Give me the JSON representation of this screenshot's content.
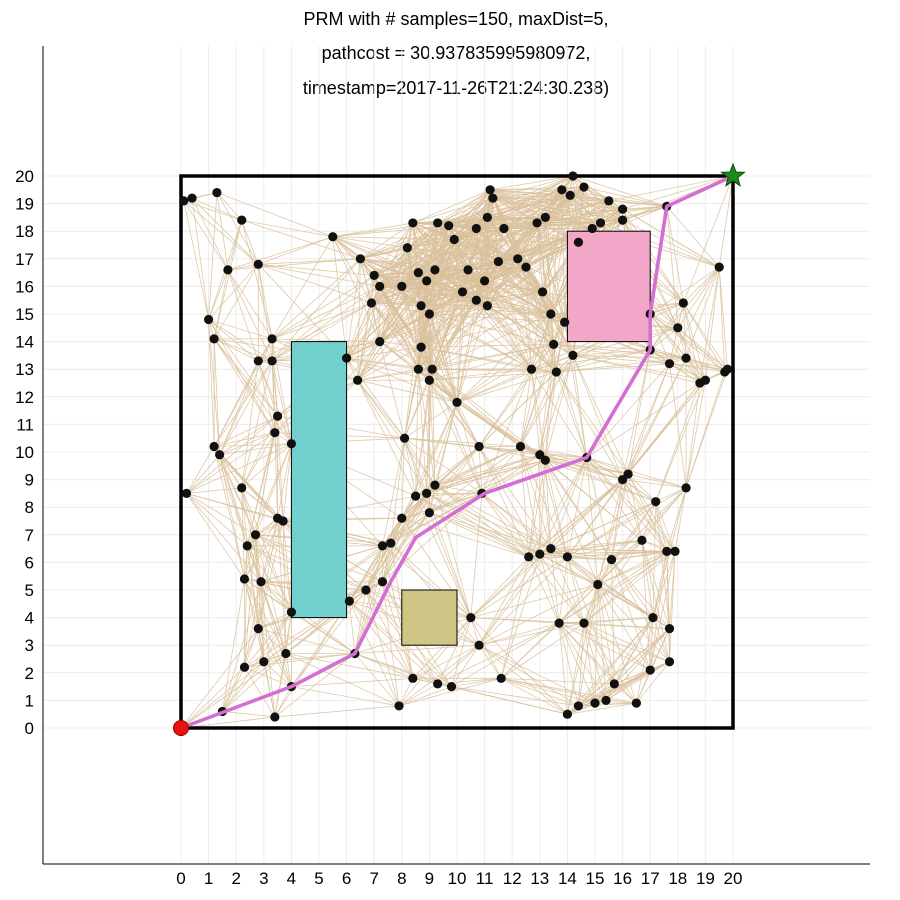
{
  "chart_data": {
    "type": "scatter",
    "title_lines": [
      "PRM with # samples=150, maxDist=5,",
      "pathcost = 30.937835995980972,",
      "timestamp=2017-11-26T21:24:30.238)"
    ],
    "xlabel": "",
    "ylabel": "",
    "xlim": [
      -5,
      25
    ],
    "ylim": [
      -5,
      25
    ],
    "xticks": [
      0,
      1,
      2,
      3,
      4,
      5,
      6,
      7,
      8,
      9,
      10,
      11,
      12,
      13,
      14,
      15,
      16,
      17,
      18,
      19,
      20
    ],
    "yticks": [
      0,
      1,
      2,
      3,
      4,
      5,
      6,
      7,
      8,
      9,
      10,
      11,
      12,
      13,
      14,
      15,
      16,
      17,
      18,
      19,
      20
    ],
    "grid": true,
    "legend": "none",
    "boundary": {
      "x": [
        0,
        20
      ],
      "y": [
        0,
        20
      ],
      "color": "#000000"
    },
    "obstacles": [
      {
        "x": 4,
        "y": 4,
        "w": 2,
        "h": 10,
        "color": "#71d0cd"
      },
      {
        "x": 8,
        "y": 3,
        "w": 2,
        "h": 2,
        "color": "#cfc584"
      },
      {
        "x": 14,
        "y": 14,
        "w": 3,
        "h": 4,
        "color": "#f2a6c8"
      }
    ],
    "start": {
      "x": 0,
      "y": 0,
      "color": "#e8120f"
    },
    "goal": {
      "x": 20,
      "y": 20,
      "color": "#1d8a1d"
    },
    "edge_color": "#d9bf9a",
    "node_color": "#111111",
    "path_color": "#d36fd2",
    "max_dist": 5,
    "nodes": [
      [
        0.1,
        19.1
      ],
      [
        0.4,
        19.2
      ],
      [
        1.3,
        19.4
      ],
      [
        2.2,
        18.4
      ],
      [
        1.7,
        16.6
      ],
      [
        2.8,
        16.8
      ],
      [
        1.0,
        14.8
      ],
      [
        1.2,
        14.1
      ],
      [
        2.8,
        13.3
      ],
      [
        3.3,
        13.3
      ],
      [
        3.3,
        14.1
      ],
      [
        3.5,
        11.3
      ],
      [
        3.4,
        10.7
      ],
      [
        4.0,
        10.3
      ],
      [
        1.2,
        10.2
      ],
      [
        1.4,
        9.9
      ],
      [
        2.2,
        8.7
      ],
      [
        0.2,
        8.5
      ],
      [
        3.5,
        7.6
      ],
      [
        3.7,
        7.5
      ],
      [
        2.7,
        7.0
      ],
      [
        2.4,
        6.6
      ],
      [
        2.3,
        5.4
      ],
      [
        2.9,
        5.3
      ],
      [
        2.8,
        3.6
      ],
      [
        2.3,
        2.2
      ],
      [
        3.0,
        2.4
      ],
      [
        3.8,
        2.7
      ],
      [
        4.0,
        4.2
      ],
      [
        1.5,
        0.6
      ],
      [
        3.4,
        0.4
      ],
      [
        4.0,
        1.5
      ],
      [
        6.3,
        2.7
      ],
      [
        6.1,
        4.6
      ],
      [
        6.7,
        5.0
      ],
      [
        7.3,
        5.3
      ],
      [
        7.3,
        6.6
      ],
      [
        7.6,
        6.7
      ],
      [
        8.0,
        7.6
      ],
      [
        8.1,
        10.5
      ],
      [
        8.5,
        8.4
      ],
      [
        8.9,
        8.5
      ],
      [
        9.2,
        8.8
      ],
      [
        9.0,
        7.8
      ],
      [
        6.0,
        13.4
      ],
      [
        6.4,
        12.6
      ],
      [
        7.2,
        14.0
      ],
      [
        6.9,
        15.4
      ],
      [
        6.5,
        17.0
      ],
      [
        5.5,
        17.8
      ],
      [
        7.0,
        16.4
      ],
      [
        7.2,
        16.0
      ],
      [
        8.0,
        16.0
      ],
      [
        8.2,
        17.4
      ],
      [
        8.4,
        18.3
      ],
      [
        8.6,
        16.5
      ],
      [
        8.9,
        16.2
      ],
      [
        9.2,
        16.6
      ],
      [
        8.7,
        15.3
      ],
      [
        9.0,
        15.0
      ],
      [
        9.3,
        18.3
      ],
      [
        9.7,
        18.2
      ],
      [
        9.9,
        17.7
      ],
      [
        10.4,
        16.6
      ],
      [
        10.2,
        15.8
      ],
      [
        10.7,
        15.5
      ],
      [
        11.1,
        15.3
      ],
      [
        11.0,
        16.2
      ],
      [
        10.7,
        18.1
      ],
      [
        11.1,
        18.5
      ],
      [
        11.5,
        16.9
      ],
      [
        11.7,
        18.1
      ],
      [
        12.2,
        17.0
      ],
      [
        12.5,
        16.7
      ],
      [
        12.9,
        18.3
      ],
      [
        13.2,
        18.5
      ],
      [
        13.1,
        15.8
      ],
      [
        13.4,
        15.0
      ],
      [
        13.9,
        14.7
      ],
      [
        13.5,
        13.9
      ],
      [
        12.7,
        13.0
      ],
      [
        13.6,
        12.9
      ],
      [
        11.3,
        19.2
      ],
      [
        11.2,
        19.5
      ],
      [
        13.8,
        19.5
      ],
      [
        14.2,
        20.0
      ],
      [
        14.6,
        19.6
      ],
      [
        14.1,
        19.3
      ],
      [
        15.5,
        19.1
      ],
      [
        16.0,
        18.8
      ],
      [
        16.0,
        18.4
      ],
      [
        17.6,
        18.9
      ],
      [
        15.2,
        18.3
      ],
      [
        14.9,
        18.1
      ],
      [
        14.4,
        17.6
      ],
      [
        17.0,
        15.0
      ],
      [
        17.0,
        13.7
      ],
      [
        14.2,
        13.5
      ],
      [
        17.7,
        13.2
      ],
      [
        18.3,
        13.4
      ],
      [
        18.0,
        14.5
      ],
      [
        18.2,
        15.4
      ],
      [
        19.5,
        16.7
      ],
      [
        19.7,
        12.9
      ],
      [
        19.8,
        13.0
      ],
      [
        18.8,
        12.5
      ],
      [
        19.0,
        12.6
      ],
      [
        18.3,
        8.7
      ],
      [
        17.2,
        8.2
      ],
      [
        16.0,
        9.0
      ],
      [
        16.2,
        9.2
      ],
      [
        14.7,
        9.8
      ],
      [
        13.0,
        9.9
      ],
      [
        13.2,
        9.7
      ],
      [
        12.3,
        10.2
      ],
      [
        10.8,
        10.2
      ],
      [
        10.0,
        11.8
      ],
      [
        9.0,
        12.6
      ],
      [
        8.6,
        13.0
      ],
      [
        9.1,
        13.0
      ],
      [
        8.7,
        13.8
      ],
      [
        10.9,
        8.5
      ],
      [
        13.4,
        6.5
      ],
      [
        13.0,
        6.3
      ],
      [
        14.0,
        6.2
      ],
      [
        15.6,
        6.1
      ],
      [
        16.7,
        6.8
      ],
      [
        17.6,
        6.4
      ],
      [
        17.9,
        6.4
      ],
      [
        15.1,
        5.2
      ],
      [
        13.7,
        3.8
      ],
      [
        17.1,
        4.0
      ],
      [
        17.7,
        3.6
      ],
      [
        17.7,
        2.4
      ],
      [
        17.0,
        2.1
      ],
      [
        15.7,
        1.6
      ],
      [
        15.4,
        1.0
      ],
      [
        16.5,
        0.9
      ],
      [
        15.0,
        0.9
      ],
      [
        14.4,
        0.8
      ],
      [
        14.0,
        0.5
      ],
      [
        11.6,
        1.8
      ],
      [
        10.8,
        3.0
      ],
      [
        9.8,
        1.5
      ],
      [
        9.3,
        1.6
      ],
      [
        8.4,
        1.8
      ],
      [
        7.9,
        0.8
      ],
      [
        12.6,
        6.2
      ],
      [
        14.6,
        3.8
      ],
      [
        10.5,
        4.0
      ]
    ],
    "path": [
      [
        0,
        0
      ],
      [
        4.0,
        1.5
      ],
      [
        6.3,
        2.7
      ],
      [
        7.6,
        5.3
      ],
      [
        8.5,
        6.9
      ],
      [
        11.0,
        8.5
      ],
      [
        14.7,
        9.8
      ],
      [
        17.0,
        13.7
      ],
      [
        17.0,
        15.0
      ],
      [
        17.6,
        18.9
      ],
      [
        20,
        20
      ]
    ]
  }
}
